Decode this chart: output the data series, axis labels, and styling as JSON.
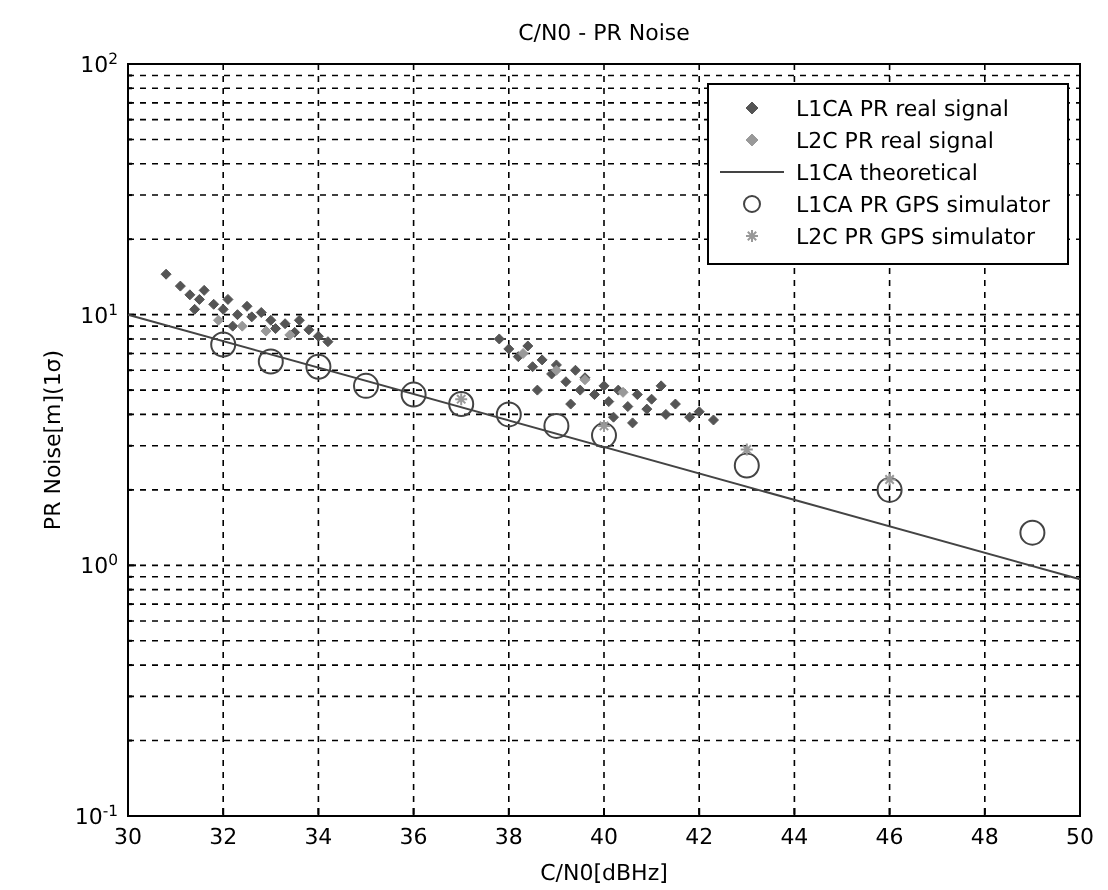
{
  "chart_data": {
    "type": "scatter",
    "title": "C/N0 - PR Noise",
    "xlabel": "C/N0[dBHz]",
    "ylabel": "PR Noise[m](1σ)",
    "xlim": [
      30,
      50
    ],
    "xticks": [
      30,
      32,
      34,
      36,
      38,
      40,
      42,
      44,
      46,
      48,
      50
    ],
    "ylim": [
      0.1,
      100
    ],
    "log": "y",
    "grid": true,
    "legend": "top right",
    "yticks": [
      {
        "value": 0.1,
        "label": "10$^{-1}$"
      },
      {
        "value": 0.2,
        "label": null
      },
      {
        "value": 0.3,
        "label": null
      },
      {
        "value": 0.4,
        "label": null
      },
      {
        "value": 0.5,
        "label": null
      },
      {
        "value": 0.6,
        "label": null
      },
      {
        "value": 0.7,
        "label": null
      },
      {
        "value": 0.8,
        "label": null
      },
      {
        "value": 0.9,
        "label": null
      },
      {
        "value": 1,
        "label": "10$^{0}$"
      },
      {
        "value": 2,
        "label": null
      },
      {
        "value": 3,
        "label": null
      },
      {
        "value": 4,
        "label": null
      },
      {
        "value": 5,
        "label": null
      },
      {
        "value": 6,
        "label": null
      },
      {
        "value": 7,
        "label": null
      },
      {
        "value": 8,
        "label": null
      },
      {
        "value": 9,
        "label": null
      },
      {
        "value": 10,
        "label": "10$^{1}$"
      },
      {
        "value": 20,
        "label": null
      },
      {
        "value": 30,
        "label": null
      },
      {
        "value": 40,
        "label": null
      },
      {
        "value": 50,
        "label": null
      },
      {
        "value": 60,
        "label": null
      },
      {
        "value": 70,
        "label": null
      },
      {
        "value": 80,
        "label": null
      },
      {
        "value": 90,
        "label": null
      },
      {
        "value": 100,
        "label": "10$^{2}$"
      }
    ],
    "series": [
      {
        "name": "L1CA PR real signal",
        "marker": "diamond",
        "color": "#555555",
        "x": [
          30.8,
          31.1,
          31.3,
          31.5,
          31.6,
          31.8,
          32,
          32.1,
          32.3,
          32.5,
          32.6,
          32.8,
          33,
          33.1,
          33.3,
          33.5,
          33.6,
          33.8,
          34,
          34.2,
          31.4,
          32.2,
          37.8,
          38,
          38.2,
          38.4,
          38.5,
          38.7,
          38.9,
          39,
          39.2,
          39.4,
          39.5,
          39.6,
          39.8,
          40,
          40.1,
          40.3,
          40.5,
          40.7,
          40.9,
          41,
          41.3,
          41.5,
          41.8,
          42,
          42.3,
          40.2,
          39.3,
          38.6,
          41.2,
          40.6
        ],
        "values": [
          14.5,
          13,
          12,
          11.5,
          12.5,
          11,
          10.5,
          11.5,
          10,
          10.8,
          9.8,
          10.2,
          9.5,
          8.8,
          9.2,
          8.5,
          9.5,
          8.7,
          8.2,
          7.8,
          10.5,
          9,
          8,
          7.3,
          6.8,
          7.5,
          6.2,
          6.6,
          5.8,
          6.3,
          5.4,
          6,
          5,
          5.6,
          4.8,
          5.2,
          4.5,
          5,
          4.3,
          4.8,
          4.2,
          4.6,
          4,
          4.4,
          3.9,
          4.1,
          3.8,
          3.9,
          4.4,
          5,
          5.2,
          3.7
        ]
      },
      {
        "name": "L2C PR real signal",
        "marker": "diamond",
        "color": "#999999",
        "x": [
          31.9,
          32.4,
          32.9,
          33.4,
          38.3,
          39,
          39.6,
          40.4
        ],
        "values": [
          9.5,
          9,
          8.6,
          8.3,
          7,
          6,
          5.5,
          4.9
        ]
      },
      {
        "name": "L1CA theoretical",
        "type": "line",
        "marker": "none",
        "color": "#444444",
        "x": [
          30,
          50
        ],
        "values": [
          10,
          0.88
        ]
      },
      {
        "name": "L1CA PR GPS simulator",
        "marker": "circle",
        "color": "#444444",
        "x": [
          32,
          33,
          34,
          35,
          36,
          37,
          38,
          39,
          40,
          43,
          46,
          49
        ],
        "values": [
          7.6,
          6.5,
          6.2,
          5.2,
          4.8,
          4.4,
          4,
          3.6,
          3.3,
          2.5,
          2,
          1.35
        ]
      },
      {
        "name": "L2C PR GPS simulator",
        "marker": "cross",
        "color": "#999999",
        "x": [
          37,
          40,
          43,
          46
        ],
        "values": [
          4.6,
          3.6,
          2.9,
          2.2
        ]
      }
    ]
  }
}
